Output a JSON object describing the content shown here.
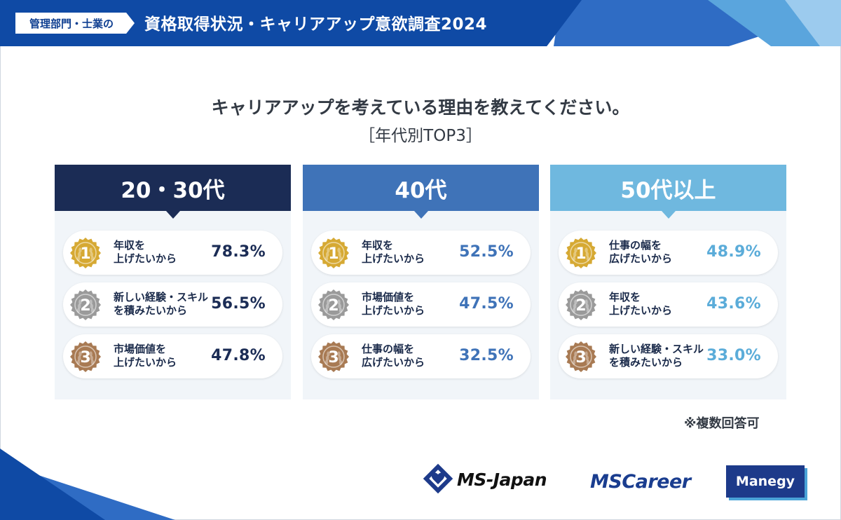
{
  "header": {
    "label": "管理部門・士業の",
    "title": "資格取得状況・キャリアアップ意欲調査2024"
  },
  "question": "キャリアアップを考えている理由を教えてください。",
  "subtitle": "［年代別TOP3］",
  "note": "※複数回答可",
  "colors": {
    "banner": "#0f4aa5",
    "group_20_30": "#1b2c55",
    "group_40": "#3f73b8",
    "group_50": "#6fb8df",
    "gold": "#d6a933",
    "silver": "#9a9a9a",
    "bronze": "#a87a53"
  },
  "chart_data": {
    "type": "table",
    "title": "キャリアアップを考えている理由を教えてください。",
    "subtitle": "［年代別TOP3］",
    "unit": "%",
    "groups": [
      {
        "name": "20・30代",
        "ranks": [
          {
            "rank": "1",
            "reason": [
              "年収を",
              "上げたいから"
            ],
            "value": 78.3,
            "label": "78.3%"
          },
          {
            "rank": "2",
            "reason": [
              "新しい経験・スキル",
              "を積みたいから"
            ],
            "value": 56.5,
            "label": "56.5%"
          },
          {
            "rank": "3",
            "reason": [
              "市場価値を",
              "上げたいから"
            ],
            "value": 47.8,
            "label": "47.8%"
          }
        ]
      },
      {
        "name": "40代",
        "ranks": [
          {
            "rank": "1",
            "reason": [
              "年収を",
              "上げたいから"
            ],
            "value": 52.5,
            "label": "52.5%"
          },
          {
            "rank": "2",
            "reason": [
              "市場価値を",
              "上げたいから"
            ],
            "value": 47.5,
            "label": "47.5%"
          },
          {
            "rank": "3",
            "reason": [
              "仕事の幅を",
              "広げたいから"
            ],
            "value": 32.5,
            "label": "32.5%"
          }
        ]
      },
      {
        "name": "50代以上",
        "ranks": [
          {
            "rank": "1",
            "reason": [
              "仕事の幅を",
              "広げたいから"
            ],
            "value": 48.9,
            "label": "48.9%"
          },
          {
            "rank": "2",
            "reason": [
              "年収を",
              "上げたいから"
            ],
            "value": 43.6,
            "label": "43.6%"
          },
          {
            "rank": "3",
            "reason": [
              "新しい経験・スキル",
              "を積みたいから"
            ],
            "value": 33.0,
            "label": "33.0%"
          }
        ]
      }
    ]
  },
  "logos": {
    "msjapan": "MS-Japan",
    "mscareer": "MSCareer",
    "manegy": "Manegy"
  }
}
